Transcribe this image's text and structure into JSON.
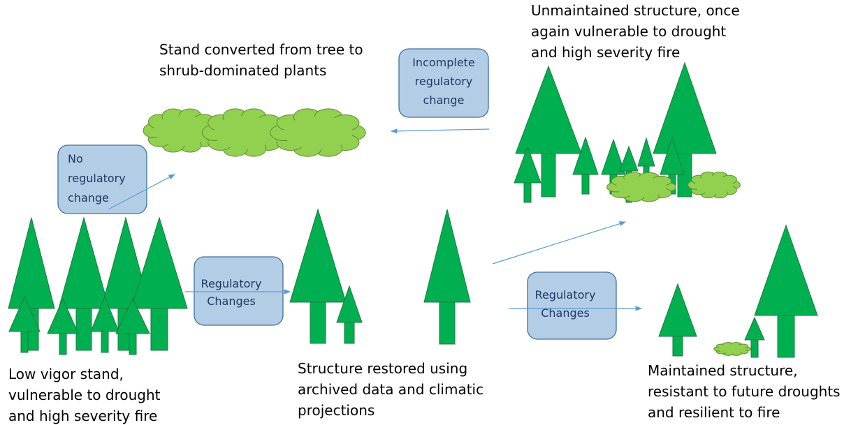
{
  "labels": [
    {
      "lines": [
        "Stand converted from tree to",
        "shrub-dominated plants"
      ]
    },
    {
      "lines": [
        "Unmaintained structure, once",
        "again vulnerable to drought",
        "and high severity fire"
      ]
    },
    {
      "lines": [
        "Low vigor stand,",
        "vulnerable to drought",
        "and high severity fire"
      ]
    },
    {
      "lines": [
        "Structure restored using",
        "archived data and climatic",
        "projections"
      ]
    },
    {
      "lines": [
        "Maintained structure,",
        "resistant to future droughts",
        "and resilient to fire"
      ]
    }
  ],
  "boxes": [
    {
      "lines": [
        "Incomplete",
        "regulatory",
        "change"
      ]
    },
    {
      "lines": [
        "No",
        "regulatory",
        "change"
      ]
    },
    {
      "lines": [
        "Regulatory",
        "Changes"
      ]
    },
    {
      "lines": [
        "Regulatory",
        "Changes"
      ]
    }
  ]
}
